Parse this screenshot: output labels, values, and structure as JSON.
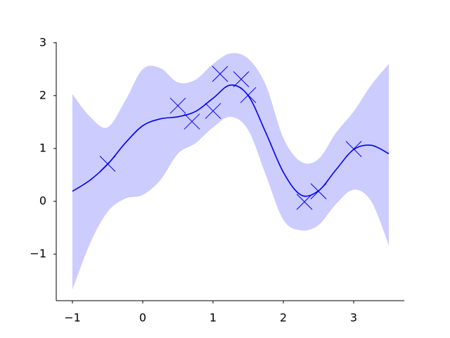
{
  "chart_data": {
    "type": "line",
    "x": [
      -1,
      -0.75,
      -0.5,
      -0.25,
      0,
      0.25,
      0.5,
      0.75,
      1,
      1.25,
      1.5,
      1.75,
      2,
      2.25,
      2.5,
      2.75,
      3,
      3.25,
      3.5
    ],
    "series": [
      {
        "color": "#0000ee",
        "values": [
          0.19,
          0.4,
          0.7,
          1.1,
          1.43,
          1.56,
          1.6,
          1.7,
          1.95,
          2.2,
          2.0,
          1.3,
          0.55,
          0.12,
          0.2,
          0.6,
          0.98,
          1.06,
          0.9
        ]
      }
    ],
    "band": {
      "color": "#ccccff",
      "upper": [
        2.03,
        1.6,
        1.4,
        1.9,
        2.5,
        2.52,
        2.25,
        2.3,
        2.6,
        2.8,
        2.7,
        2.2,
        1.2,
        0.75,
        0.8,
        1.3,
        1.7,
        2.2,
        2.6
      ],
      "lower": [
        -1.67,
        -0.8,
        -0.2,
        0.05,
        0.12,
        0.4,
        0.9,
        1.1,
        1.4,
        1.6,
        1.35,
        0.5,
        -0.35,
        -0.55,
        -0.45,
        -0.05,
        0.22,
        0.0,
        -0.83
      ]
    },
    "points": {
      "color": "#0000ee",
      "x": [
        -0.5,
        0.5,
        0.7,
        1.0,
        1.1,
        1.4,
        1.5,
        2.3,
        2.5,
        3.0
      ],
      "y": [
        0.71,
        1.81,
        1.51,
        1.71,
        2.41,
        2.31,
        2.01,
        -0.01,
        0.19,
        0.99
      ]
    },
    "xlim": [
      -1.23,
      3.72
    ],
    "ylim": [
      -1.88,
      3.01
    ],
    "xticks": [
      {
        "value": -1,
        "label": "−1"
      },
      0,
      1,
      2,
      3
    ],
    "yticks": [
      {
        "value": -1,
        "label": "−1"
      },
      0,
      1,
      2,
      3
    ]
  }
}
